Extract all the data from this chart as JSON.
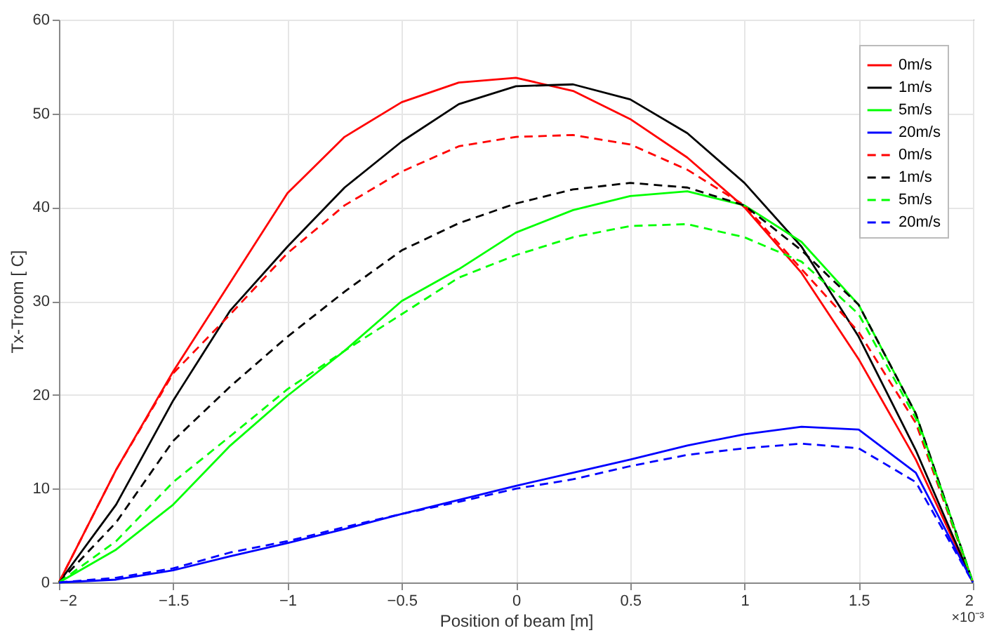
{
  "chart_data": {
    "type": "line",
    "xlabel": "Position of beam [m]",
    "ylabel": "Tx-Troom [ C]",
    "annotations": [
      "×10⁻³"
    ],
    "x": [
      -2,
      -1.75,
      -1.5,
      -1.25,
      -1,
      -0.75,
      -0.5,
      -0.25,
      0,
      0.25,
      0.5,
      0.75,
      1,
      1.25,
      1.5,
      1.75,
      2
    ],
    "xlim": [
      -2,
      2
    ],
    "xticks": [
      -2,
      -1.5,
      -1,
      -0.5,
      0,
      0.5,
      1,
      1.5,
      2
    ],
    "ylim": [
      0,
      60
    ],
    "yticks": [
      0,
      10,
      20,
      30,
      40,
      50,
      60
    ],
    "grid": true,
    "legend": "top right",
    "marker": "none",
    "series": [
      {
        "name": "0m/s",
        "color": "#ff0000",
        "line_style": "solid",
        "values": [
          0,
          12,
          22.5,
          32,
          41.5,
          47.5,
          51.2,
          53.3,
          53.8,
          52.4,
          49.4,
          45.3,
          40,
          33,
          23.8,
          13.1,
          0
        ]
      },
      {
        "name": "1m/s",
        "color": "#000000",
        "line_style": "solid",
        "values": [
          0,
          8.3,
          19.4,
          29,
          35.8,
          42.1,
          47,
          51,
          52.9,
          53.1,
          51.5,
          47.9,
          42.6,
          35.8,
          26.2,
          14.1,
          0
        ]
      },
      {
        "name": "5m/s",
        "color": "#00ff00",
        "line_style": "solid",
        "values": [
          0,
          3.5,
          8.3,
          14.6,
          19.9,
          24.7,
          30,
          33.4,
          37.3,
          39.7,
          41.2,
          41.7,
          40.2,
          36.3,
          29.6,
          18,
          0
        ]
      },
      {
        "name": "20m/s",
        "color": "#0000ff",
        "line_style": "solid",
        "values": [
          0,
          0.3,
          1.3,
          2.8,
          4.2,
          5.7,
          7.3,
          8.8,
          10.3,
          11.7,
          13.1,
          14.6,
          15.8,
          16.6,
          16.3,
          11.7,
          0
        ]
      },
      {
        "name": "0m/s",
        "color": "#ff0000",
        "line_style": "dashed",
        "values": [
          0,
          12,
          22.3,
          28.6,
          35.1,
          40.2,
          43.8,
          46.5,
          47.5,
          47.7,
          46.7,
          44,
          40.2,
          33.4,
          26.7,
          17,
          0
        ]
      },
      {
        "name": "1m/s",
        "color": "#000000",
        "line_style": "dashed",
        "values": [
          0,
          6.4,
          15.1,
          20.9,
          26.2,
          31,
          35.4,
          38.3,
          40.4,
          41.9,
          42.6,
          42.1,
          40.2,
          35.4,
          29.6,
          18,
          0
        ]
      },
      {
        "name": "5m/s",
        "color": "#00ff00",
        "line_style": "dashed",
        "values": [
          0,
          4.4,
          10.7,
          15.6,
          20.6,
          24.7,
          28.6,
          32.5,
          34.9,
          36.8,
          38,
          38.2,
          36.8,
          34.2,
          28.6,
          17.5,
          0
        ]
      },
      {
        "name": "20m/s",
        "color": "#0000ff",
        "line_style": "dashed",
        "values": [
          0,
          0.5,
          1.5,
          3.2,
          4.4,
          5.9,
          7.3,
          8.6,
          10,
          11,
          12.4,
          13.6,
          14.3,
          14.8,
          14.3,
          10.7,
          0
        ]
      }
    ]
  }
}
